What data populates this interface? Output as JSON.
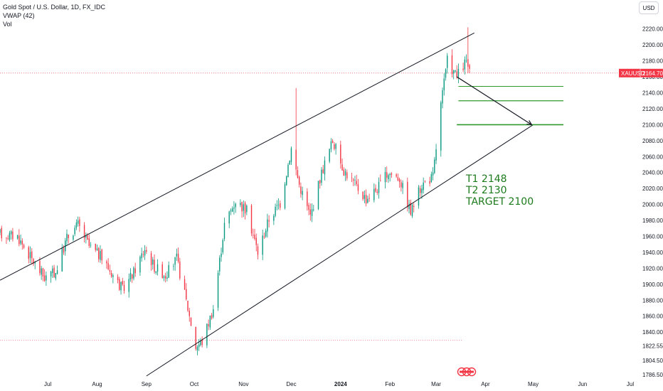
{
  "legend": {
    "symbol_line": "Gold Spot / U.S. Dollar, 1D, FX_IDC",
    "vwap_label": "VWAP (42)",
    "vol_label": "Vol"
  },
  "currency_button": "USD",
  "price_label": {
    "ticker": "XAUUSD",
    "value": "2164.70"
  },
  "colors": {
    "up": "#089981",
    "down": "#f23645",
    "target_lines": "#2e9a2e",
    "note_text": "#1b7a1b",
    "channel": "#131722",
    "price_line": "#f23645"
  },
  "y_axis_labels": [
    "2220.00",
    "2200.00",
    "2180.00",
    "2160.00",
    "2140.00",
    "2120.00",
    "2100.00",
    "2080.00",
    "2060.00",
    "2040.00",
    "2020.00",
    "2000.00",
    "1980.00",
    "1960.00",
    "1940.00",
    "1920.00",
    "1900.00",
    "1880.00",
    "1860.00",
    "1840.00",
    "1822.55",
    "1804.50",
    "1786.50"
  ],
  "x_axis_labels": [
    {
      "label": "Jul",
      "bold": false
    },
    {
      "label": "Aug",
      "bold": false
    },
    {
      "label": "Sep",
      "bold": false
    },
    {
      "label": "Oct",
      "bold": false
    },
    {
      "label": "Nov",
      "bold": false
    },
    {
      "label": "Dec",
      "bold": false
    },
    {
      "label": "2024",
      "bold": true
    },
    {
      "label": "Feb",
      "bold": false
    },
    {
      "label": "Mar",
      "bold": false
    },
    {
      "label": "Apr",
      "bold": false
    },
    {
      "label": "May",
      "bold": false
    },
    {
      "label": "Jun",
      "bold": false
    },
    {
      "label": "Jul",
      "bold": false
    }
  ],
  "annotations": {
    "t1": "T1 2148",
    "t2": "T2 2130",
    "target": "TARGET 2100"
  },
  "chart_data": {
    "type": "candlestick",
    "title": "Gold Spot / U.S. Dollar, 1D, FX_IDC",
    "y_range": [
      1782,
      2232
    ],
    "x_range": [
      "2023-06-01",
      "2024-07-05"
    ],
    "current_price": 2164.7,
    "support_line_level": 1830,
    "levels": [
      {
        "name": "T1",
        "value": 2148
      },
      {
        "name": "T2",
        "value": 2130
      },
      {
        "name": "TARGET",
        "value": 2100
      }
    ],
    "channel_upper": [
      [
        "2023-06-01",
        1905
      ],
      [
        "2024-03-25",
        2215
      ]
    ],
    "channel_lower": [
      [
        "2023-09-01",
        1785
      ],
      [
        "2024-05-01",
        2100
      ]
    ],
    "projection_arrow": [
      [
        "2024-03-14",
        2160
      ],
      [
        "2024-04-30",
        2100
      ]
    ],
    "anchors": [
      [
        "2023-06-01",
        1963
      ],
      [
        "2023-06-12",
        1960
      ],
      [
        "2023-06-23",
        1925
      ],
      [
        "2023-06-29",
        1908
      ],
      [
        "2023-07-06",
        1915
      ],
      [
        "2023-07-13",
        1958
      ],
      [
        "2023-07-20",
        1975
      ],
      [
        "2023-07-27",
        1948
      ],
      [
        "2023-08-03",
        1935
      ],
      [
        "2023-08-10",
        1915
      ],
      [
        "2023-08-17",
        1893
      ],
      [
        "2023-08-24",
        1915
      ],
      [
        "2023-08-31",
        1945
      ],
      [
        "2023-09-06",
        1922
      ],
      [
        "2023-09-13",
        1912
      ],
      [
        "2023-09-20",
        1932
      ],
      [
        "2023-09-27",
        1870
      ],
      [
        "2023-10-02",
        1822
      ],
      [
        "2023-10-06",
        1828
      ],
      [
        "2023-10-13",
        1870
      ],
      [
        "2023-10-20",
        1975
      ],
      [
        "2023-10-27",
        2005
      ],
      [
        "2023-11-03",
        1992
      ],
      [
        "2023-11-10",
        1940
      ],
      [
        "2023-11-17",
        1982
      ],
      [
        "2023-11-24",
        2002
      ],
      [
        "2023-12-01",
        2070
      ],
      [
        "2023-12-06",
        2025
      ],
      [
        "2023-12-13",
        1985
      ],
      [
        "2023-12-20",
        2040
      ],
      [
        "2023-12-27",
        2080
      ],
      [
        "2024-01-03",
        2043
      ],
      [
        "2024-01-10",
        2025
      ],
      [
        "2024-01-17",
        2007
      ],
      [
        "2024-01-24",
        2020
      ],
      [
        "2024-01-31",
        2040
      ],
      [
        "2024-02-07",
        2033
      ],
      [
        "2024-02-14",
        1990
      ],
      [
        "2024-02-21",
        2025
      ],
      [
        "2024-02-28",
        2035
      ],
      [
        "2024-03-04",
        2125
      ],
      [
        "2024-03-08",
        2180
      ],
      [
        "2024-03-14",
        2160
      ],
      [
        "2024-03-20",
        2180
      ],
      [
        "2024-03-22",
        2164.7
      ]
    ],
    "spikes": [
      [
        "2023-12-04",
        2146
      ],
      [
        "2024-03-21",
        2222
      ]
    ]
  }
}
